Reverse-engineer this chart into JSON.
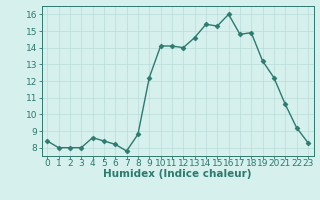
{
  "x": [
    0,
    1,
    2,
    3,
    4,
    5,
    6,
    7,
    8,
    9,
    10,
    11,
    12,
    13,
    14,
    15,
    16,
    17,
    18,
    19,
    20,
    21,
    22,
    23
  ],
  "y": [
    8.4,
    8.0,
    8.0,
    8.0,
    8.6,
    8.4,
    8.2,
    7.8,
    8.8,
    12.2,
    14.1,
    14.1,
    14.0,
    14.6,
    15.4,
    15.3,
    16.0,
    14.8,
    14.9,
    13.2,
    12.2,
    10.6,
    9.2,
    8.3
  ],
  "line_color": "#2d7a6e",
  "bg_color": "#d6f0ee",
  "grid_color": "#b8dcd8",
  "xlabel": "Humidex (Indice chaleur)",
  "xlim": [
    -0.5,
    23.5
  ],
  "ylim": [
    7.5,
    16.5
  ],
  "xticks": [
    0,
    1,
    2,
    3,
    4,
    5,
    6,
    7,
    8,
    9,
    10,
    11,
    12,
    13,
    14,
    15,
    16,
    17,
    18,
    19,
    20,
    21,
    22,
    23
  ],
  "yticks": [
    8,
    9,
    10,
    11,
    12,
    13,
    14,
    15,
    16
  ],
  "marker_size": 2.5,
  "line_width": 1.0,
  "font_size": 6.5,
  "xlabel_fontsize": 7.5
}
